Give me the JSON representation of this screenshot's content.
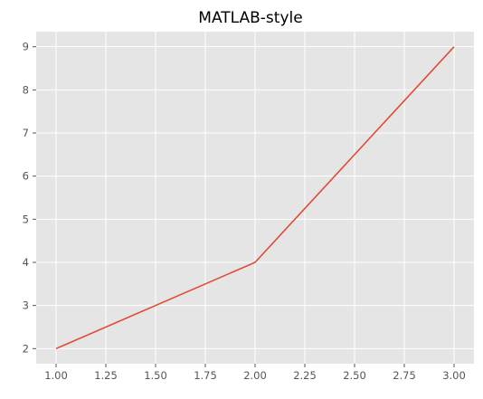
{
  "chart_data": {
    "type": "line",
    "title": "MATLAB-style",
    "xlabel": "",
    "ylabel": "",
    "x": [
      1.0,
      2.0,
      3.0
    ],
    "series": [
      {
        "values": [
          2,
          4,
          9
        ],
        "color": "#E24A33"
      }
    ],
    "xlim": [
      0.9,
      3.1
    ],
    "ylim": [
      1.65,
      9.35
    ],
    "xticks": [
      1.0,
      1.25,
      1.5,
      1.75,
      2.0,
      2.25,
      2.5,
      2.75,
      3.0
    ],
    "xtick_labels": [
      "1.00",
      "1.25",
      "1.50",
      "1.75",
      "2.00",
      "2.25",
      "2.50",
      "2.75",
      "3.00"
    ],
    "yticks": [
      2,
      3,
      4,
      5,
      6,
      7,
      8,
      9
    ],
    "ytick_labels": [
      "2",
      "3",
      "4",
      "5",
      "6",
      "7",
      "8",
      "9"
    ],
    "grid": true,
    "background": "#E5E5E5",
    "grid_color": "#FFFFFF",
    "legend": "none"
  }
}
